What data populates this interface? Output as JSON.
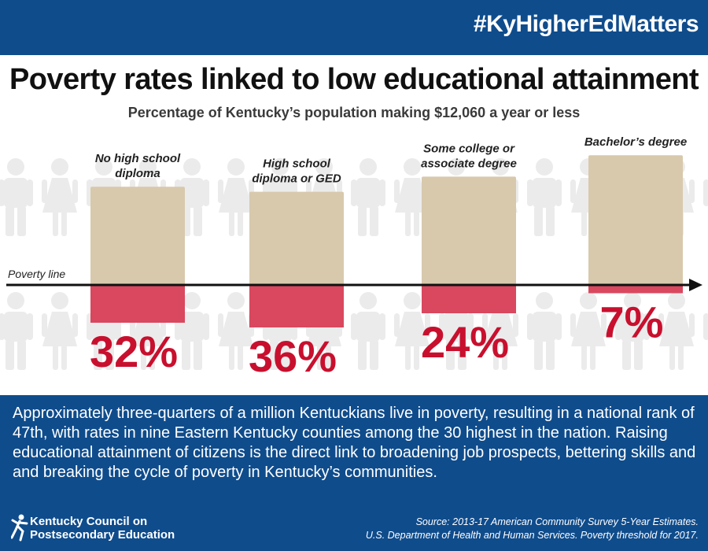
{
  "header": {
    "hashtag": "#KyHigherEdMatters"
  },
  "title": "Poverty rates linked to low educational attainment",
  "subtitle": "Percentage of Kentucky’s population making $12,060 a year or less",
  "chart_data": {
    "type": "bar",
    "categories": [
      [
        "No high school",
        "diploma"
      ],
      [
        "High school",
        "diploma or GED"
      ],
      [
        "Some college or",
        "associate degree"
      ],
      [
        "Bachelor’s degree"
      ]
    ],
    "values": [
      32,
      36,
      24,
      7
    ],
    "value_labels": [
      "32%",
      "36%",
      "24%",
      "7%"
    ],
    "reference_line_label": "Poverty line",
    "colors": {
      "bar_above": "#d8c9ad",
      "bar_below": "#d9485f",
      "value_text": "#c8102e",
      "line": "#111111",
      "people": "#ebebeb"
    }
  },
  "body_text": "Approximately three-quarters of a million Kentuckians live in poverty, resulting in a national rank of 47th, with rates in nine Eastern Kentucky counties among the 30 highest in the nation. Raising educational attainment of citizens is the direct link to broadening job prospects, bettering skills and and breaking the cycle of poverty in Kentucky’s communities.",
  "footer": {
    "logo_line1": "Kentucky Council on",
    "logo_line2": "Postsecondary Education",
    "source_line1": "Source: 2013-17 American Community Survey 5-Year Estimates.",
    "source_line2": "U.S. Department of Health and Human Services. Poverty threshold  for 2017."
  },
  "theme": {
    "brand_blue": "#0f4c8c"
  }
}
